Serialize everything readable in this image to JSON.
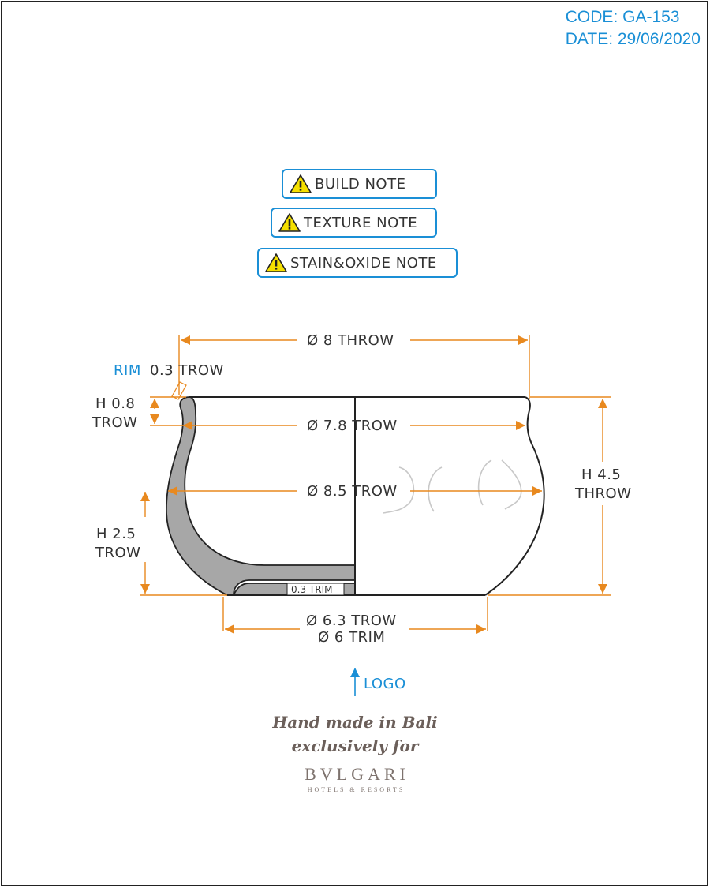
{
  "header": {
    "code": "CODE: GA-153",
    "date": "DATE: 29/06/2020"
  },
  "notes": {
    "build": "BUILD NOTE",
    "texture": "TEXTURE NOTE",
    "stain": "STAIN&OXIDE NOTE"
  },
  "dimensions": {
    "top_diameter": "Ø 8 THROW",
    "rim_label": "RIM",
    "rim_value": "0.3 TROW",
    "h08_line1": "H 0.8",
    "h08_line2": "TROW",
    "mouth_diameter": "Ø 7.8 TROW",
    "body_diameter": "Ø 8.5 TROW",
    "h45_line1": "H 4.5",
    "h45_line2": "THROW",
    "h25_line1": "H 2.5",
    "h25_line2": "TROW",
    "base_trim": "0.3 TRIM",
    "foot_throw": "Ø 6.3 TROW",
    "foot_trim": "Ø 6 TRIM"
  },
  "logo_label": "LOGO",
  "brand": {
    "line1": "Hand made in Bali",
    "line2": "exclusively for",
    "name": "BVLGARI",
    "sub": "HOTELS & RESORTS"
  },
  "colors": {
    "accent": "#1a8fd6",
    "dimension": "#e8891f",
    "wall": "#a7a7a7",
    "warning": "#f5e000"
  }
}
